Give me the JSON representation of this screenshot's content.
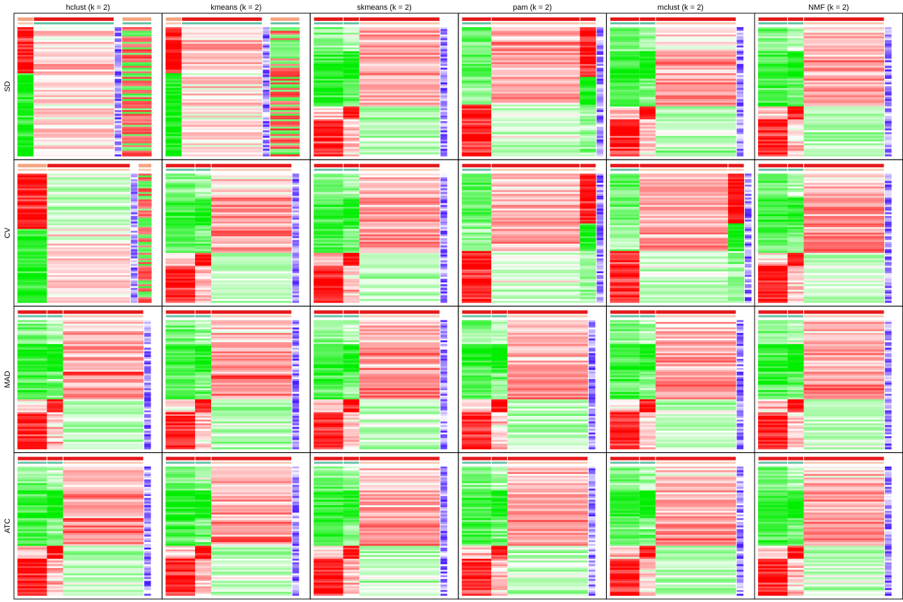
{
  "chart_data": {
    "type": "heatmap",
    "columns": [
      "hclust (k = 2)",
      "kmeans (k = 2)",
      "skmeans (k = 2)",
      "pam (k = 2)",
      "mclust (k = 2)",
      "NMF (k = 2)"
    ],
    "rows": [
      "SD",
      "CV",
      "MAD",
      "ATC"
    ],
    "palette": {
      "low": "#00ee00",
      "mid": "#ffffff",
      "high": "#ff0000",
      "class_1": "#e41a1c",
      "class_2": "#f4a582",
      "subclass": "#66c2a5",
      "row_anno_low": "#ffffff",
      "row_anno_high": "#3300ff"
    },
    "panel_layouts": [
      [
        "A",
        "A",
        "B",
        "C",
        "B",
        "B"
      ],
      [
        "D",
        "B",
        "B",
        "C",
        "C",
        "B"
      ],
      [
        "B",
        "B",
        "B",
        "B",
        "B",
        "B"
      ],
      [
        "B",
        "B",
        "B",
        "B",
        "B",
        "B"
      ]
    ]
  }
}
